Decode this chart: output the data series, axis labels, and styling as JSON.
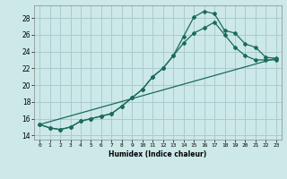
{
  "xlabel": "Humidex (Indice chaleur)",
  "x_ticks": [
    0,
    1,
    2,
    3,
    4,
    5,
    6,
    7,
    8,
    9,
    10,
    11,
    12,
    13,
    14,
    15,
    16,
    17,
    18,
    19,
    20,
    21,
    22,
    23
  ],
  "xlim": [
    -0.5,
    23.5
  ],
  "ylim": [
    13.5,
    29.5
  ],
  "y_ticks": [
    14,
    16,
    18,
    20,
    22,
    24,
    26,
    28
  ],
  "bg_color": "#cce8e8",
  "grid_color": "#aacccc",
  "line_color": "#1a6b5a",
  "curve_top": {
    "x": [
      0,
      1,
      2,
      3,
      4,
      5,
      6,
      7,
      8,
      9,
      10,
      11,
      12,
      13,
      14,
      15,
      16,
      17,
      18,
      19,
      20,
      21,
      22,
      23
    ],
    "y": [
      15.3,
      14.9,
      14.7,
      15.0,
      15.7,
      16.0,
      16.3,
      16.6,
      17.5,
      18.5,
      19.5,
      21.0,
      22.0,
      23.5,
      25.8,
      28.1,
      28.8,
      28.5,
      26.5,
      26.2,
      24.9,
      24.5,
      23.3,
      23.2
    ]
  },
  "curve_mid": {
    "x": [
      0,
      1,
      2,
      3,
      4,
      5,
      6,
      7,
      8,
      9,
      10,
      11,
      12,
      13,
      14,
      15,
      16,
      17,
      18,
      19,
      20,
      21,
      22,
      23
    ],
    "y": [
      15.3,
      14.9,
      14.7,
      15.0,
      15.7,
      16.0,
      16.3,
      16.6,
      17.5,
      18.5,
      19.5,
      21.0,
      22.0,
      23.5,
      25.0,
      26.2,
      26.8,
      27.5,
      26.0,
      24.5,
      23.5,
      23.0,
      23.0,
      23.0
    ]
  },
  "curve_min": {
    "x": [
      0,
      23
    ],
    "y": [
      15.3,
      23.2
    ]
  }
}
